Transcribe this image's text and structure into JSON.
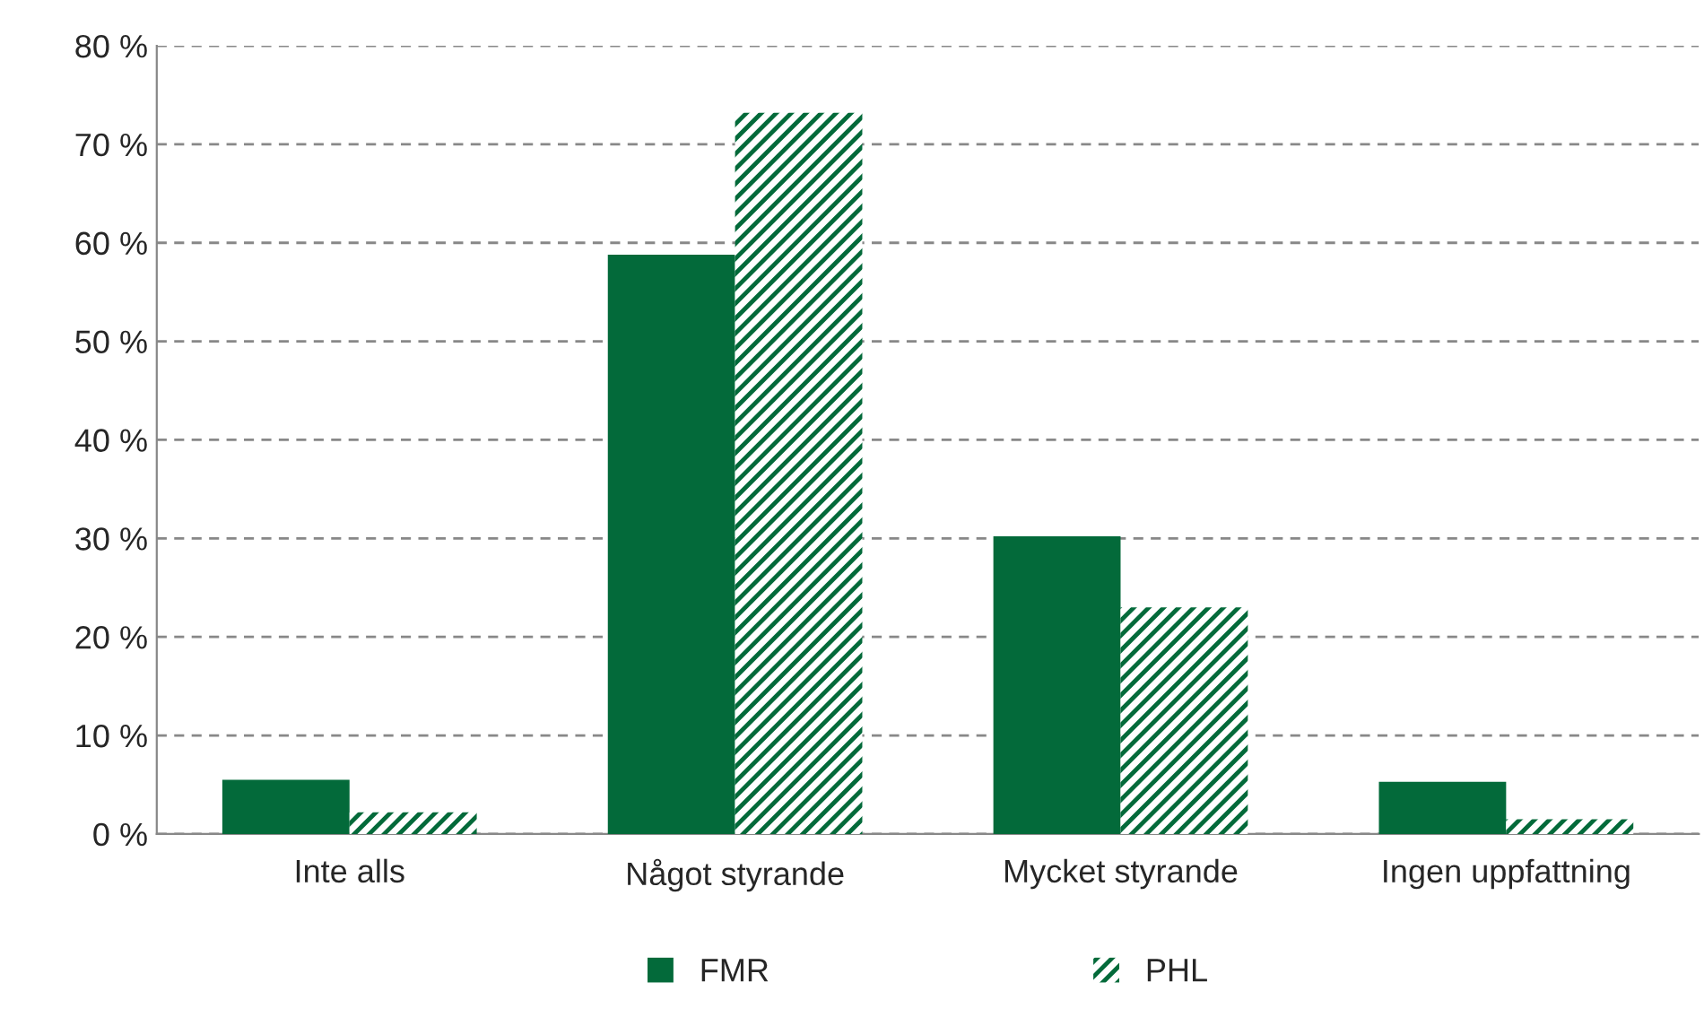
{
  "chart_data": {
    "type": "bar",
    "categories": [
      "Inte alls",
      "Något styrande",
      "Mycket styrande",
      "Ingen uppfattning"
    ],
    "series": [
      {
        "name": "FMR",
        "color": "#036a3a",
        "values": [
          5.5,
          58.8,
          30.2,
          5.3
        ]
      },
      {
        "name": "PHL",
        "color": "#036a3a",
        "values": [
          2.2,
          73.2,
          23.0,
          1.5
        ]
      }
    ],
    "ylim": [
      0,
      80
    ],
    "yticks": [
      {
        "value": 0,
        "label": "0 %"
      },
      {
        "value": 10,
        "label": "10 %"
      },
      {
        "value": 20,
        "label": "20 %"
      },
      {
        "value": 30,
        "label": "30 %"
      },
      {
        "value": 40,
        "label": "40 %"
      },
      {
        "value": 50,
        "label": "50 %"
      },
      {
        "value": 60,
        "label": "60 %"
      },
      {
        "value": 70,
        "label": "70 %"
      },
      {
        "value": 80,
        "label": "80 %"
      }
    ],
    "grid": "y",
    "legend": "bottom"
  }
}
